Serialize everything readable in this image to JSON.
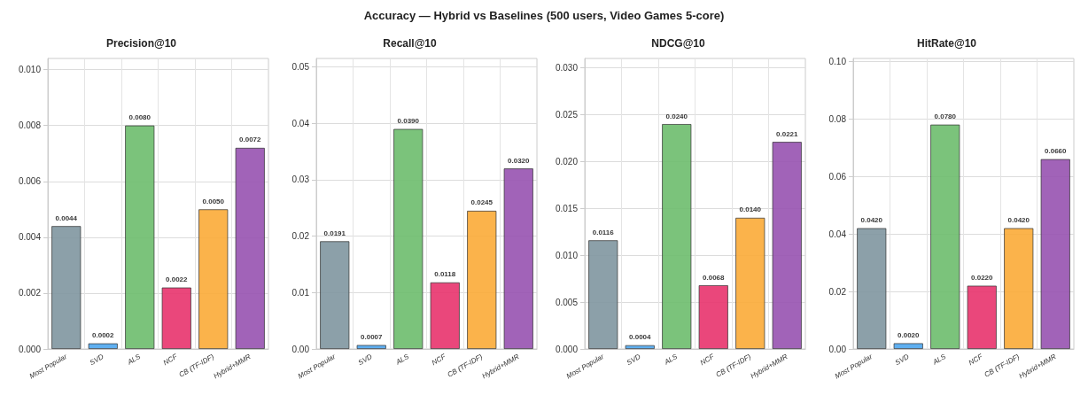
{
  "chart_data": [
    {
      "type": "bar",
      "title": "Precision@10",
      "annotations": [
        "Accuracy — Hybrid vs Baselines (500 users, Video Games 5-core)"
      ],
      "categories": [
        "Most Popular",
        "SVD",
        "ALS",
        "NCF",
        "CB (TF-IDF)",
        "Hybrid+MMR"
      ],
      "values": [
        0.0044,
        0.0002,
        0.008,
        0.0022,
        0.005,
        0.0072
      ],
      "value_labels": [
        "0.0044",
        "0.0002",
        "0.0080",
        "0.0022",
        "0.0050",
        "0.0072"
      ],
      "colors": [
        "#7f96a0",
        "#4ea6ee",
        "#6dbd6d",
        "#e8336d",
        "#fbab37",
        "#9752b0"
      ],
      "ylim": [
        0,
        0.0104
      ],
      "yticks": [
        {
          "value": 0,
          "label": "0.000"
        },
        {
          "value": 0.002,
          "label": "0.002"
        },
        {
          "value": 0.004,
          "label": "0.004"
        },
        {
          "value": 0.006,
          "label": "0.006"
        },
        {
          "value": 0.008,
          "label": "0.008"
        },
        {
          "value": 0.01,
          "label": "0.010"
        }
      ],
      "grid": true
    },
    {
      "type": "bar",
      "title": "Recall@10",
      "categories": [
        "Most Popular",
        "SVD",
        "ALS",
        "NCF",
        "CB (TF-IDF)",
        "Hybrid+MMR"
      ],
      "values": [
        0.0191,
        0.0007,
        0.039,
        0.0118,
        0.0245,
        0.032
      ],
      "value_labels": [
        "0.0191",
        "0.0007",
        "0.0390",
        "0.0118",
        "0.0245",
        "0.0320"
      ],
      "colors": [
        "#7f96a0",
        "#4ea6ee",
        "#6dbd6d",
        "#e8336d",
        "#fbab37",
        "#9752b0"
      ],
      "ylim": [
        0,
        0.0515
      ],
      "yticks": [
        {
          "value": 0,
          "label": "0.00"
        },
        {
          "value": 0.01,
          "label": "0.01"
        },
        {
          "value": 0.02,
          "label": "0.02"
        },
        {
          "value": 0.03,
          "label": "0.03"
        },
        {
          "value": 0.04,
          "label": "0.04"
        },
        {
          "value": 0.05,
          "label": "0.05"
        }
      ],
      "grid": true
    },
    {
      "type": "bar",
      "title": "NDCG@10",
      "categories": [
        "Most Popular",
        "SVD",
        "ALS",
        "NCF",
        "CB (TF-IDF)",
        "Hybrid+MMR"
      ],
      "values": [
        0.0116,
        0.0004,
        0.024,
        0.0068,
        0.014,
        0.0221
      ],
      "value_labels": [
        "0.0116",
        "0.0004",
        "0.0240",
        "0.0068",
        "0.0140",
        "0.0221"
      ],
      "colors": [
        "#7f96a0",
        "#4ea6ee",
        "#6dbd6d",
        "#e8336d",
        "#fbab37",
        "#9752b0"
      ],
      "ylim": [
        0,
        0.031
      ],
      "yticks": [
        {
          "value": 0,
          "label": "0.000"
        },
        {
          "value": 0.005,
          "label": "0.005"
        },
        {
          "value": 0.01,
          "label": "0.010"
        },
        {
          "value": 0.015,
          "label": "0.015"
        },
        {
          "value": 0.02,
          "label": "0.020"
        },
        {
          "value": 0.025,
          "label": "0.025"
        },
        {
          "value": 0.03,
          "label": "0.030"
        }
      ],
      "grid": true
    },
    {
      "type": "bar",
      "title": "HitRate@10",
      "categories": [
        "Most Popular",
        "SVD",
        "ALS",
        "NCF",
        "CB (TF-IDF)",
        "Hybrid+MMR"
      ],
      "values": [
        0.042,
        0.002,
        0.078,
        0.022,
        0.042,
        0.066
      ],
      "value_labels": [
        "0.0420",
        "0.0020",
        "0.0780",
        "0.0220",
        "0.0420",
        "0.0660"
      ],
      "colors": [
        "#7f96a0",
        "#4ea6ee",
        "#6dbd6d",
        "#e8336d",
        "#fbab37",
        "#9752b0"
      ],
      "ylim": [
        0,
        0.101
      ],
      "yticks": [
        {
          "value": 0,
          "label": "0.00"
        },
        {
          "value": 0.02,
          "label": "0.02"
        },
        {
          "value": 0.04,
          "label": "0.04"
        },
        {
          "value": 0.06,
          "label": "0.06"
        },
        {
          "value": 0.08,
          "label": "0.08"
        },
        {
          "value": 0.1,
          "label": "0.10"
        }
      ],
      "grid": true
    }
  ]
}
